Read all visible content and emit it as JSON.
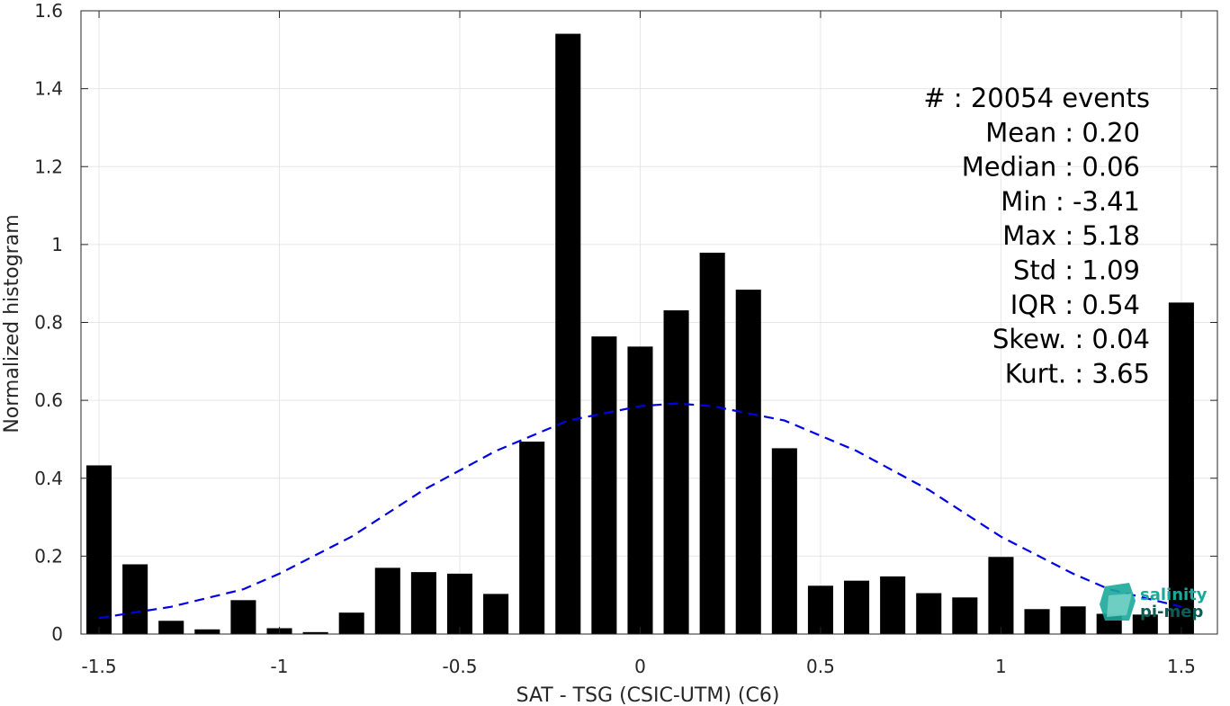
{
  "chart_data": {
    "type": "bar",
    "xlabel": "SAT - TSG (CSIC-UTM) (C6)",
    "ylabel": "Normalized histogram",
    "xlim": [
      -1.55,
      1.6
    ],
    "ylim": [
      0,
      1.6
    ],
    "grid": true,
    "x_ticks": [
      -1.5,
      -1,
      -0.5,
      0,
      0.5,
      1,
      1.5
    ],
    "x_tick_labels": [
      "-1.5",
      "-1",
      "-0.5",
      "0",
      "0.5",
      "1",
      "1.5"
    ],
    "y_ticks": [
      0,
      0.2,
      0.4,
      0.6,
      0.8,
      1,
      1.2,
      1.4,
      1.6
    ],
    "y_tick_labels": [
      "0",
      "0.2",
      "0.4",
      "0.6",
      "0.8",
      "1",
      "1.2",
      "1.4",
      "1.6"
    ],
    "bar_width": 0.07,
    "bar_color": "#000000",
    "x": [
      -1.5,
      -1.4,
      -1.3,
      -1.2,
      -1.1,
      -1.0,
      -0.9,
      -0.8,
      -0.7,
      -0.6,
      -0.5,
      -0.4,
      -0.3,
      -0.2,
      -0.1,
      0.0,
      0.1,
      0.2,
      0.3,
      0.4,
      0.5,
      0.6,
      0.7,
      0.8,
      0.9,
      1.0,
      1.1,
      1.2,
      1.3,
      1.4,
      1.5
    ],
    "values": [
      0.433,
      0.179,
      0.034,
      0.012,
      0.087,
      0.015,
      0.005,
      0.055,
      0.17,
      0.159,
      0.155,
      0.103,
      0.494,
      1.541,
      0.764,
      0.738,
      0.831,
      0.979,
      0.884,
      0.477,
      0.124,
      0.137,
      0.148,
      0.105,
      0.094,
      0.198,
      0.064,
      0.071,
      0.052,
      0.05,
      0.851
    ],
    "fit_curve": {
      "style": "dashed",
      "color": "#0000e6",
      "mean": 0.1,
      "x_range": [
        -1.5,
        1.5
      ],
      "points": [
        {
          "x": -1.5,
          "y": 0.041
        },
        {
          "x": -1.3,
          "y": 0.07
        },
        {
          "x": -1.1,
          "y": 0.115
        },
        {
          "x": -1.0,
          "y": 0.155
        },
        {
          "x": -0.8,
          "y": 0.25
        },
        {
          "x": -0.6,
          "y": 0.37
        },
        {
          "x": -0.4,
          "y": 0.47
        },
        {
          "x": -0.2,
          "y": 0.548
        },
        {
          "x": 0.0,
          "y": 0.585
        },
        {
          "x": 0.1,
          "y": 0.592
        },
        {
          "x": 0.2,
          "y": 0.585
        },
        {
          "x": 0.4,
          "y": 0.548
        },
        {
          "x": 0.6,
          "y": 0.47
        },
        {
          "x": 0.8,
          "y": 0.37
        },
        {
          "x": 1.0,
          "y": 0.25
        },
        {
          "x": 1.2,
          "y": 0.155
        },
        {
          "x": 1.3,
          "y": 0.115
        },
        {
          "x": 1.5,
          "y": 0.07
        }
      ]
    },
    "stats": [
      {
        "label": "#  : 20054 events"
      },
      {
        "label": "Mean : 0.20"
      },
      {
        "label": "Median : 0.06"
      },
      {
        "label": "Min : -3.41"
      },
      {
        "label": "Max : 5.18"
      },
      {
        "label": "Std : 1.09"
      },
      {
        "label": "IQR : 0.54"
      },
      {
        "label": "Skew. : 0.04"
      },
      {
        "label": "Kurt. : 3.65"
      }
    ]
  },
  "logo": {
    "line1": "salinity",
    "line2": "pi-mep",
    "color_primary": "#1aa89a",
    "color_dark": "#0d5c55"
  }
}
